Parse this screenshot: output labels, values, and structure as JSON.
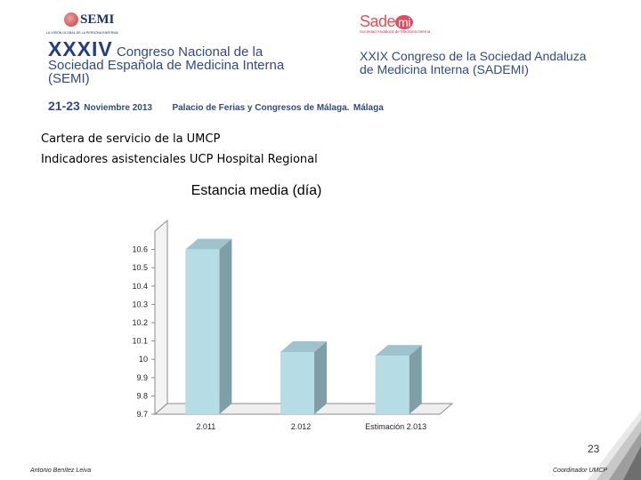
{
  "header": {
    "semi_logo": {
      "name": "SEMI",
      "tagline": "LA VISIÓN GLOBAL DE LA PERSONA ENFERMA"
    },
    "sademi_logo": {
      "name": "Sade",
      "name_mark": "mi",
      "tagline": "Sociedad Andaluza de Medicina Interna"
    },
    "left": {
      "number": "XXXIV",
      "line1": "Congreso Nacional de la",
      "line2": "Sociedad Española de Medicina Interna",
      "line3": "(SEMI)"
    },
    "right": {
      "line1": "XXIX Congreso de la Sociedad Andaluza",
      "line2": "de Medicina Interna (SADEMI)"
    },
    "date_days": "21-23",
    "date_month": "Noviembre 2013",
    "place": "Palacio de Ferias y Congresos de Málaga.",
    "city": "Málaga"
  },
  "slide": {
    "line1": "Cartera de servicio de la UMCP",
    "line2": "Indicadores asistenciales UCP Hospital Regional"
  },
  "chart_data": {
    "type": "bar",
    "title": "Estancia media (día)",
    "categories": [
      "2.011",
      "2.012",
      "Estimación 2.013"
    ],
    "series": [
      {
        "name": "Estancia media (día)",
        "values": [
          10.6,
          10.04,
          10.02
        ]
      }
    ],
    "ylim": [
      9.7,
      10.7
    ],
    "yticks": [
      "9.7",
      "9.8",
      "9.9",
      "10",
      "10.1",
      "10.2",
      "10.3",
      "10.4",
      "10.5",
      "10.6"
    ],
    "xlabel": "",
    "ylabel": "",
    "grid": false,
    "legend_position": "right",
    "bar_color": "#b6dde6"
  },
  "footer": {
    "page_number": "23",
    "left": "Antonio Benítez Leiva",
    "right": "Coordinador UMCP"
  }
}
